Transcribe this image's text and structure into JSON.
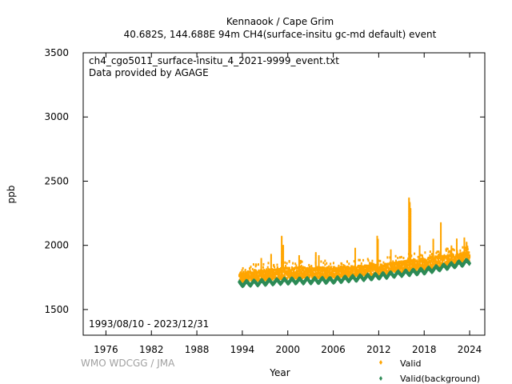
{
  "chart_data": {
    "type": "scatter",
    "title_line1": "Kennaook / Cape Grim",
    "title_line2": "40.682S, 144.688E 94m     CH4(surface-insitu gc-md default) event",
    "annotation_file": "ch4_cgo5011_surface-insitu_4_2021-9999_event.txt",
    "annotation_provider": "Data provided by AGAGE",
    "date_range": "1993/08/10 - 2023/12/31",
    "watermark": "WMO WDCGG / JMA",
    "xlabel": "Year",
    "ylabel": "ppb",
    "xlim": [
      1973,
      2026
    ],
    "ylim": [
      1300,
      3500
    ],
    "xticks": [
      1976,
      1982,
      1988,
      1994,
      2000,
      2006,
      2012,
      2018,
      2024
    ],
    "yticks": [
      1500,
      2000,
      2500,
      3000,
      3500
    ],
    "legend_position": "bottom-right",
    "series": [
      {
        "name": "Valid",
        "color": "#ffa500",
        "x_range": [
          1993.6,
          2024.0
        ],
        "lower_envelope": [
          [
            1993.6,
            1715
          ],
          [
            2000,
            1740
          ],
          [
            2006,
            1745
          ],
          [
            2012,
            1770
          ],
          [
            2018,
            1810
          ],
          [
            2024,
            1870
          ]
        ],
        "upper_envelope": [
          [
            1993.6,
            1790
          ],
          [
            2000,
            1830
          ],
          [
            2006,
            1830
          ],
          [
            2012,
            1850
          ],
          [
            2018,
            1900
          ],
          [
            2024,
            1950
          ]
        ],
        "spikes": [
          [
            1996.5,
            1900
          ],
          [
            1997.8,
            1930
          ],
          [
            1999.2,
            2075
          ],
          [
            1999.4,
            2000
          ],
          [
            2001.5,
            1925
          ],
          [
            2003.7,
            1945
          ],
          [
            2004.1,
            1920
          ],
          [
            2008.9,
            1980
          ],
          [
            2011.8,
            2075
          ],
          [
            2011.9,
            2050
          ],
          [
            2013.6,
            1965
          ],
          [
            2016.0,
            2370
          ],
          [
            2016.1,
            2340
          ],
          [
            2016.2,
            2290
          ],
          [
            2016.05,
            2200
          ],
          [
            2016.15,
            2150
          ],
          [
            2017.4,
            2000
          ],
          [
            2019.2,
            2050
          ],
          [
            2020.2,
            2175
          ],
          [
            2021.6,
            1990
          ],
          [
            2022.3,
            2050
          ],
          [
            2023.3,
            2055
          ],
          [
            2023.6,
            2020
          ]
        ]
      },
      {
        "name": "Valid(background)",
        "color": "#2e8b57",
        "x_range": [
          1993.6,
          2024.0
        ],
        "trend": [
          [
            1993.6,
            1700
          ],
          [
            2000,
            1722
          ],
          [
            2006,
            1728
          ],
          [
            2012,
            1760
          ],
          [
            2018,
            1800
          ],
          [
            2024,
            1872
          ]
        ],
        "seasonal_amplitude": 15
      }
    ]
  }
}
